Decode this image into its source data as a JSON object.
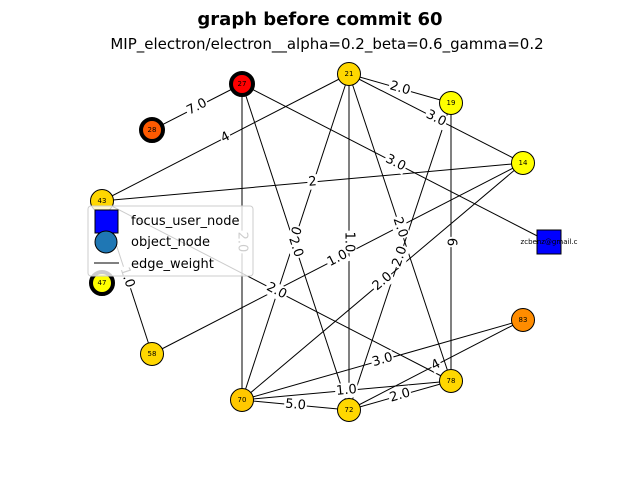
{
  "title": "graph before commit 60",
  "subtitle": "MIP_electron/electron__alpha=0.2_beta=0.6_gamma=0.2",
  "legend": {
    "items": [
      {
        "label": "focus_user_node",
        "shape": "square",
        "color": "#0000ff"
      },
      {
        "label": "object_node",
        "shape": "circle",
        "color": "#1f77b4"
      },
      {
        "label": "edge_weight",
        "shape": "line",
        "color": "#000000"
      }
    ]
  },
  "nodes": [
    {
      "id": "27",
      "label": "27",
      "fill": "#ff0000",
      "thick": true
    },
    {
      "id": "21",
      "label": "21",
      "fill": "#ffd700",
      "thick": false
    },
    {
      "id": "19",
      "label": "19",
      "fill": "#ffff00",
      "thick": false
    },
    {
      "id": "28",
      "label": "28",
      "fill": "#ff5a00",
      "thick": true
    },
    {
      "id": "14",
      "label": "14",
      "fill": "#ffff00",
      "thick": false
    },
    {
      "id": "43",
      "label": "43",
      "fill": "#ffd700",
      "thick": false
    },
    {
      "id": "zc",
      "label": "zcbenz@gmail.c",
      "fill": "#0000ff",
      "thick": false,
      "square": true
    },
    {
      "id": "47",
      "label": "47",
      "fill": "#ffff00",
      "thick": true
    },
    {
      "id": "58",
      "label": "58",
      "fill": "#ffd700",
      "thick": false
    },
    {
      "id": "83",
      "label": "83",
      "fill": "#ff8c00",
      "thick": false
    },
    {
      "id": "70",
      "label": "70",
      "fill": "#ffc800",
      "thick": false
    },
    {
      "id": "72",
      "label": "72",
      "fill": "#ffd700",
      "thick": false
    },
    {
      "id": "78",
      "label": "78",
      "fill": "#ffd700",
      "thick": false
    }
  ],
  "edges": [
    {
      "from": "28",
      "to": "27",
      "label": "7.0"
    },
    {
      "from": "21",
      "to": "43",
      "label": "4"
    },
    {
      "from": "27",
      "to": "zc",
      "label": "3.0"
    },
    {
      "from": "21",
      "to": "19",
      "label": "2.0"
    },
    {
      "from": "21",
      "to": "14",
      "label": "3.0"
    },
    {
      "from": "43",
      "to": "14",
      "label": "2"
    },
    {
      "from": "21",
      "to": "72",
      "label": "1.0"
    },
    {
      "from": "21",
      "to": "70",
      "label": "2.0"
    },
    {
      "from": "21",
      "to": "78",
      "label": "2.0"
    },
    {
      "from": "27",
      "to": "70",
      "label": "2.0"
    },
    {
      "from": "27",
      "to": "72",
      "label": "2.0"
    },
    {
      "from": "14",
      "to": "58",
      "label": "1.0"
    },
    {
      "from": "19",
      "to": "72",
      "label": "2.0"
    },
    {
      "from": "19",
      "to": "78",
      "label": "6"
    },
    {
      "from": "14",
      "to": "70",
      "label": "2.0"
    },
    {
      "from": "43",
      "to": "78",
      "label": "2.0"
    },
    {
      "from": "43",
      "to": "58",
      "label": "1.0"
    },
    {
      "from": "70",
      "to": "83",
      "label": "3.0"
    },
    {
      "from": "72",
      "to": "83",
      "label": "4"
    },
    {
      "from": "70",
      "to": "72",
      "label": "5.0"
    },
    {
      "from": "70",
      "to": "78",
      "label": "1.0"
    },
    {
      "from": "72",
      "to": "78",
      "label": "2.0"
    }
  ]
}
